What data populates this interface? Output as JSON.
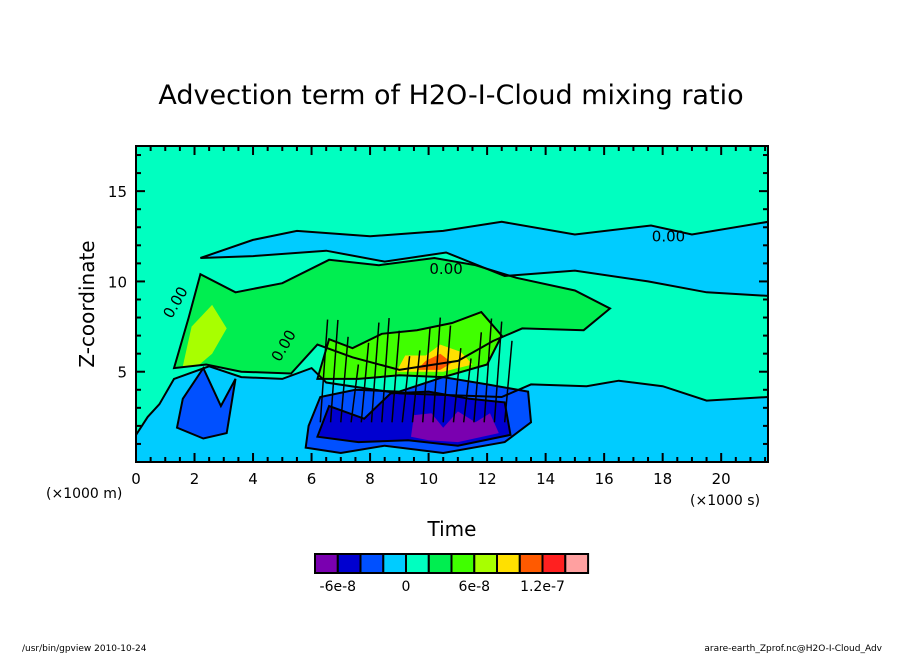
{
  "chart_data": {
    "type": "heatmap",
    "title": "Advection term of H2O-I-Cloud mixing ratio",
    "xlabel": "Time",
    "ylabel": "Z-coordinate",
    "x_unit": "(×1000 s)",
    "y_unit": "(×1000 m)",
    "xlim": [
      0,
      21.6
    ],
    "ylim": [
      0,
      17.5
    ],
    "x_ticks": [
      "0",
      "2",
      "4",
      "6",
      "8",
      "10",
      "12",
      "14",
      "16",
      "18",
      "20"
    ],
    "y_ticks": [
      "5",
      "10",
      "15"
    ],
    "x_tick_values": [
      0,
      2,
      4,
      6,
      8,
      10,
      12,
      14,
      16,
      18,
      20
    ],
    "y_tick_values": [
      5,
      10,
      15
    ],
    "contour_labels": [
      {
        "text": "0.00",
        "x": 10.6,
        "y": 10.4
      },
      {
        "text": "0.00",
        "x": 18.2,
        "y": 12.2
      },
      {
        "text": "0.00",
        "x": 1.5,
        "y": 8.7
      },
      {
        "text": "0.00",
        "x": 5.2,
        "y": 6.3
      }
    ],
    "colorbar": {
      "colors": [
        "#7a00b0",
        "#0000d0",
        "#0050ff",
        "#00ccff",
        "#00ffc0",
        "#00ee50",
        "#40ff00",
        "#a8ff00",
        "#ffe000",
        "#ff5a00",
        "#ff2020",
        "#ffa0a0"
      ],
      "labels": [
        "-6e-8",
        "0",
        "6e-8",
        "1.2e-7"
      ],
      "label_levels": [
        -6e-08,
        0,
        6e-08,
        1.2e-07
      ],
      "levels": [
        -8e-08,
        -6e-08,
        -4e-08,
        -2e-08,
        0,
        2e-08,
        4e-08,
        6e-08,
        8e-08,
        1e-07,
        1.2e-07,
        1.4e-07
      ]
    },
    "regions": [
      {
        "name": "background-zero",
        "level_index": 4
      },
      {
        "name": "upper-negative-band",
        "level_index": 3
      },
      {
        "name": "lower-negative-zone",
        "level_index": 3
      },
      {
        "name": "mid-positive-green",
        "level_index": 5
      },
      {
        "name": "early-convection-negative",
        "level_index": 2
      },
      {
        "name": "main-convection-negative",
        "level_index": 2
      },
      {
        "name": "main-convection-core-negative",
        "level_index": 1
      },
      {
        "name": "main-convection-minimum",
        "level_index": 0
      },
      {
        "name": "convection-positive",
        "level_index": 6
      },
      {
        "name": "convection-strong-positive",
        "level_index": 8
      },
      {
        "name": "convection-peak-positive",
        "level_index": 9
      }
    ]
  },
  "footer": {
    "left": "/usr/bin/gpview   2010-10-24",
    "right": "arare-earth_Zprof.nc@H2O-I-Cloud_Adv"
  }
}
